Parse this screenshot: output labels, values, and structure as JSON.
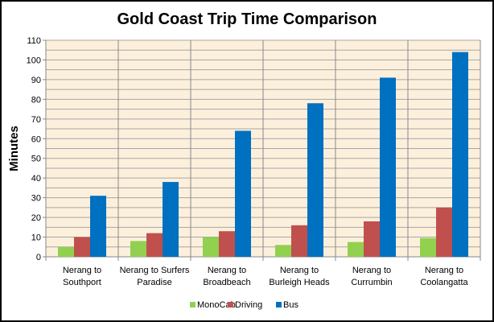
{
  "chart_data": {
    "type": "bar",
    "title": "Gold Coast Trip Time Comparison",
    "xlabel": "",
    "ylabel": "Minutes",
    "ylim": [
      0,
      110
    ],
    "ytick_step": 10,
    "minor_grid_step": 5,
    "grid": true,
    "legend_position": "bottom",
    "categories": [
      [
        "Nerang to",
        "Southport"
      ],
      [
        "Nerang to Surfers",
        "Paradise"
      ],
      [
        "Nerang to",
        "Broadbeach"
      ],
      [
        "Nerang to",
        "Burleigh Heads"
      ],
      [
        "Nerang to",
        "Currumbin"
      ],
      [
        "Nerang to",
        "Coolangatta"
      ]
    ],
    "series": [
      {
        "name": "MonoCab",
        "color": "#92D050",
        "values": [
          5,
          8,
          10,
          6,
          7.5,
          9.5
        ]
      },
      {
        "name": "Driving",
        "color": "#C0504D",
        "values": [
          10,
          12,
          13,
          16,
          18,
          25
        ]
      },
      {
        "name": "Bus",
        "color": "#0070C0",
        "values": [
          31,
          38,
          64,
          78,
          91,
          104
        ]
      }
    ],
    "plot_background": "#FCF0DC",
    "grid_color": "#A6A6A6"
  }
}
